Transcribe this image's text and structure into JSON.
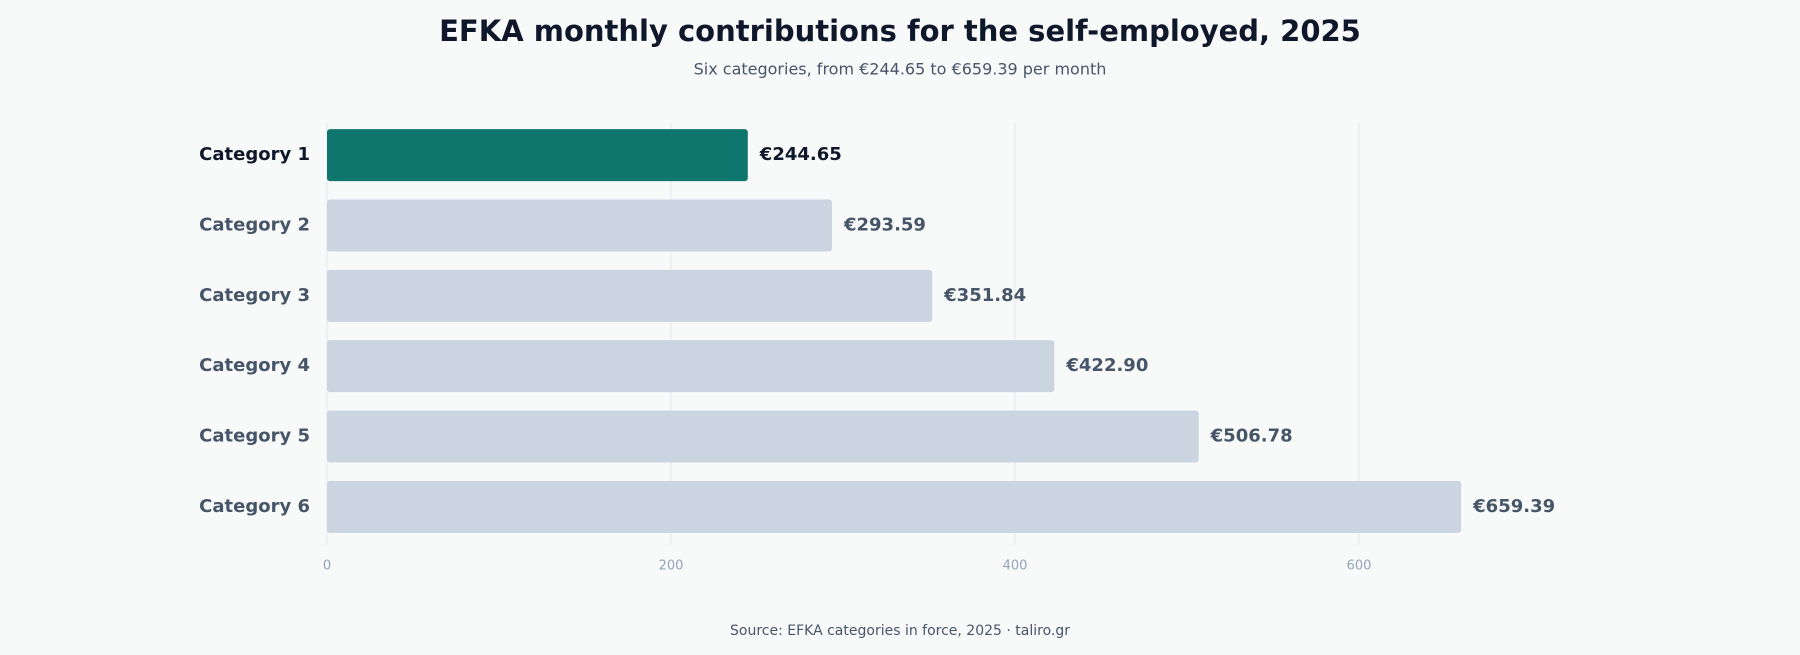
{
  "chart_data": {
    "type": "bar",
    "orientation": "horizontal",
    "title": "EFKA monthly contributions for the self-employed, 2025",
    "subtitle": "Six categories, from €244.65 to €659.39 per month",
    "source": "Source: EFKA categories in force, 2025 · taliro.gr",
    "categories": [
      "Category 1",
      "Category 2",
      "Category 3",
      "Category 4",
      "Category 5",
      "Category 6"
    ],
    "values": [
      244.65,
      293.59,
      351.84,
      422.9,
      506.78,
      659.39
    ],
    "value_labels": [
      "€244.65",
      "€293.59",
      "€351.84",
      "€422.90",
      "€506.78",
      "€659.39"
    ],
    "colors": [
      "#0f766e",
      "#cbd5e1",
      "#cbd5e1",
      "#cbd5e1",
      "#cbd5e1",
      "#cbd5e1"
    ],
    "xlim": [
      0,
      700
    ],
    "xticks": [
      0,
      200,
      400,
      600
    ],
    "grid": true
  }
}
